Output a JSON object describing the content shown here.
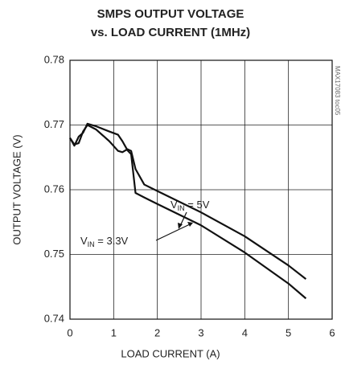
{
  "chart_data": {
    "type": "line",
    "title": [
      "SMPS OUTPUT VOLTAGE",
      "vs. LOAD CURRENT (1MHz)"
    ],
    "x_label": "LOAD CURRENT (A)",
    "y_label": "OUTPUT VOLTAGE (V)",
    "side_note": "MAX17083 toc05",
    "x": [
      0,
      0.1,
      0.2,
      0.3,
      0.4,
      0.6,
      0.9,
      1.1,
      1.2,
      1.3,
      1.4,
      1.5,
      1.7,
      2,
      3,
      4,
      5,
      5.4
    ],
    "series": [
      {
        "color": "#111111",
        "values": [
          0.768,
          0.7668,
          0.7682,
          0.7688,
          0.7702,
          0.7698,
          0.769,
          0.7685,
          0.7675,
          0.7663,
          0.766,
          0.7632,
          0.7608,
          0.7598,
          0.7565,
          0.7528,
          0.7483,
          0.7462
        ]
      },
      {
        "color": "#111111",
        "values": [
          0.768,
          0.767,
          0.7672,
          0.769,
          0.77,
          0.7693,
          0.7675,
          0.766,
          0.7658,
          0.7662,
          0.7655,
          0.7595,
          0.7588,
          0.7578,
          0.7545,
          0.7503,
          0.7455,
          0.7432
        ]
      }
    ],
    "annotations": [
      {
        "text": "V",
        "sub": "IN",
        "rest": " = 5V"
      },
      {
        "text": "V",
        "sub": "IN",
        "rest": " = 3.3V"
      }
    ],
    "xlim": [
      0,
      6
    ],
    "xticks": [
      0,
      1,
      2,
      3,
      4,
      5,
      6
    ],
    "ylim": [
      0.74,
      0.78
    ],
    "yticks": [
      0.74,
      0.75,
      0.76,
      0.77,
      0.78
    ],
    "grid": true
  }
}
